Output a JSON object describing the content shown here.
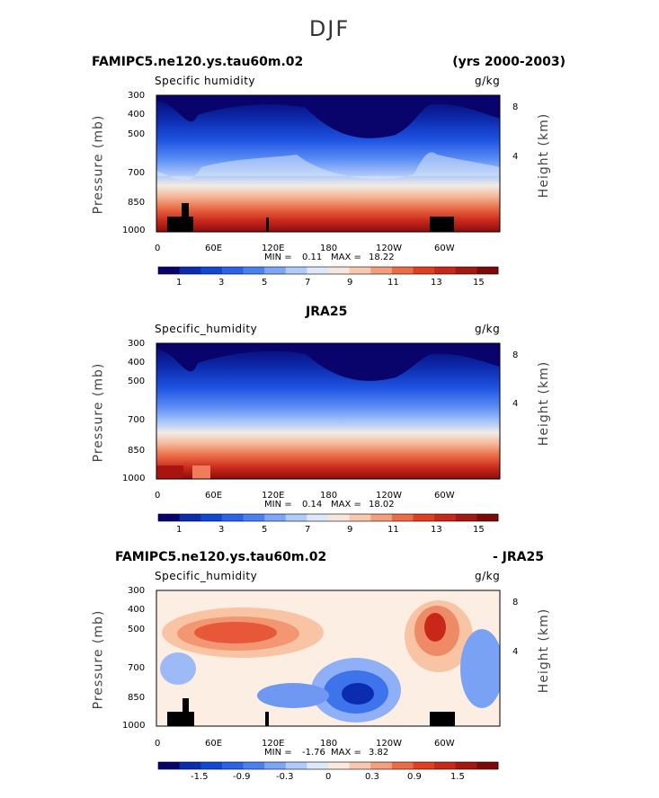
{
  "page": {
    "title": "DJF"
  },
  "chart_data": [
    {
      "type": "heatmap",
      "title_left": "FAMIPC5.ne120.ys.tau60m.02",
      "title_right": "(yrs 2000-2003)",
      "variable": "Specific humidity",
      "units": "g/kg",
      "ylabel": "Pressure (mb)",
      "ylabel_right": "Height (km)",
      "x_ticks": [
        "0",
        "60E",
        "120E",
        "180",
        "120W",
        "60W"
      ],
      "y_ticks": [
        "300",
        "400",
        "500",
        "700",
        "850",
        "1000"
      ],
      "y2_ticks": [
        "8",
        "4"
      ],
      "min_text": "MIN =",
      "min": "0.11",
      "max_text": "MAX =",
      "max": "18.22",
      "colorbar_labels": [
        "1",
        "3",
        "5",
        "7",
        "9",
        "11",
        "13",
        "15"
      ],
      "colorbar_colors": [
        "#08046c",
        "#0c2cb0",
        "#1048d4",
        "#2a62ea",
        "#4a80f2",
        "#7ea6f6",
        "#b0cbf8",
        "#dde8fa",
        "#f8e6dc",
        "#f8c8b0",
        "#f49e7e",
        "#ec6c48",
        "#e04020",
        "#c8281a",
        "#a41812",
        "#7c0a0a"
      ]
    },
    {
      "type": "heatmap",
      "title_center": "JRA25",
      "variable": "Specific_humidity",
      "units": "g/kg",
      "ylabel": "Pressure (mb)",
      "ylabel_right": "Height (km)",
      "x_ticks": [
        "0",
        "60E",
        "120E",
        "180",
        "120W",
        "60W"
      ],
      "y_ticks": [
        "300",
        "400",
        "500",
        "700",
        "850",
        "1000"
      ],
      "y2_ticks": [
        "8",
        "4"
      ],
      "min_text": "MIN =",
      "min": "0.14",
      "max_text": "MAX =",
      "max": "18.02",
      "colorbar_labels": [
        "1",
        "3",
        "5",
        "7",
        "9",
        "11",
        "13",
        "15"
      ],
      "colorbar_colors": [
        "#08046c",
        "#0c2cb0",
        "#1048d4",
        "#2a62ea",
        "#4a80f2",
        "#7ea6f6",
        "#b0cbf8",
        "#dde8fa",
        "#f8e6dc",
        "#f8c8b0",
        "#f49e7e",
        "#ec6c48",
        "#e04020",
        "#c8281a",
        "#a41812",
        "#7c0a0a"
      ]
    },
    {
      "type": "heatmap",
      "title_left": "FAMIPC5.ne120.ys.tau60m.02",
      "title_right": "- JRA25",
      "variable": "Specific_humidity",
      "units": "g/kg",
      "ylabel": "Pressure (mb)",
      "ylabel_right": "Height (km)",
      "x_ticks": [
        "0",
        "60E",
        "120E",
        "180",
        "120W",
        "60W"
      ],
      "y_ticks": [
        "300",
        "400",
        "500",
        "700",
        "850",
        "1000"
      ],
      "y2_ticks": [
        "8",
        "4"
      ],
      "min_text": "MIN =",
      "min": "-1.76",
      "max_text": "MAX =",
      "max": "3.82",
      "colorbar_labels": [
        "-1.5",
        "-0.9",
        "-0.3",
        "0",
        "0.3",
        "0.9",
        "1.5"
      ],
      "colorbar_colors": [
        "#08046c",
        "#0c2cb0",
        "#1048d4",
        "#2a62ea",
        "#4a80f2",
        "#7ea6f6",
        "#b0cbf8",
        "#dde8fa",
        "#fde8dc",
        "#f8c8b0",
        "#f49e7e",
        "#ec6c48",
        "#e04020",
        "#c8281a",
        "#a41812",
        "#7c0a0a"
      ]
    }
  ]
}
